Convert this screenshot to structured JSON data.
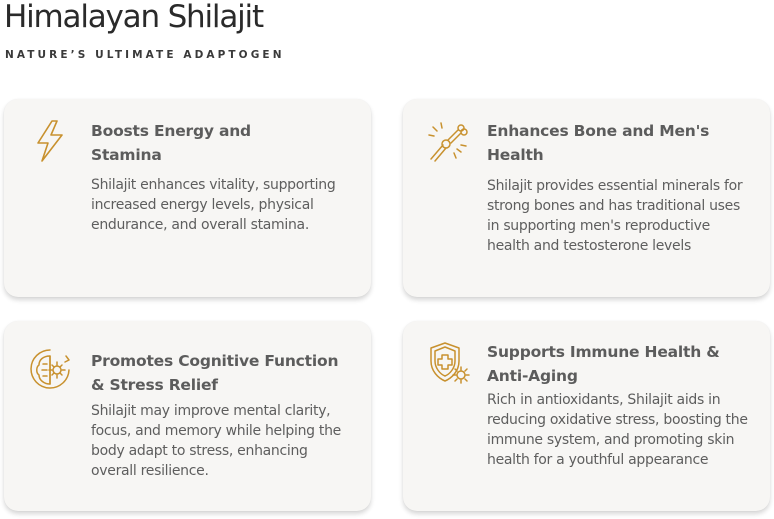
{
  "header": {
    "title": "Himalayan Shilajit",
    "subtitle": "NATURE’S ULTIMATE ADAPTOGEN"
  },
  "theme": {
    "icon_color": "#c8912e",
    "card_background": "#f7f6f4"
  },
  "cards": [
    {
      "icon": "lightning-bolt-icon",
      "title": "Boosts Energy and Stamina",
      "description": "Shilajit enhances vitality, supporting increased energy levels, physical endurance, and overall stamina."
    },
    {
      "icon": "joint-bone-icon",
      "title": "Enhances Bone and Men's Health",
      "description": "Shilajit provides essential minerals for strong bones and has traditional uses in supporting men's reproductive health and testosterone levels"
    },
    {
      "icon": "brain-gear-icon",
      "title": "Promotes Cognitive Function & Stress Relief",
      "description": "Shilajit may improve mental clarity, focus, and memory while helping the body adapt to stress, enhancing overall resilience."
    },
    {
      "icon": "shield-plus-gear-icon",
      "title": "Supports Immune Health & Anti-Aging",
      "description": "Rich in antioxidants, Shilajit aids in reducing oxidative stress, boosting the immune system, and promoting skin health for a youthful appearance"
    }
  ]
}
